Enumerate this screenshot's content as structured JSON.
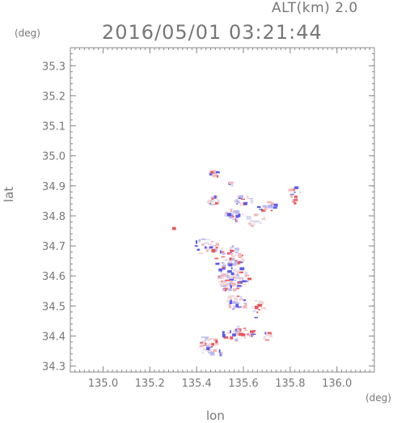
{
  "header": {
    "alt_label": "ALT(km) 2.0",
    "time_label": "2016/05/01 03:21:44"
  },
  "chart_data": {
    "type": "scatter",
    "title": "2016/05/01 03:21:44",
    "subtitle": "ALT(km) 2.0",
    "xlabel": "lon",
    "ylabel": "lat",
    "xunit": "(deg)",
    "yunit": "(deg)",
    "xlim": [
      134.86,
      136.16
    ],
    "ylim": [
      34.28,
      35.36
    ],
    "xticks": [
      135.0,
      135.2,
      135.4,
      135.6,
      135.8,
      136.0
    ],
    "xtick_labels": [
      "135.0",
      "135.2",
      "135.4",
      "135.6",
      "135.8",
      "136.0"
    ],
    "yticks": [
      34.3,
      34.4,
      34.5,
      34.6,
      34.7,
      34.8,
      34.9,
      35.0,
      35.1,
      35.2,
      35.3
    ],
    "ytick_labels": [
      "34.3",
      "34.4",
      "34.5",
      "34.6",
      "34.7",
      "34.8",
      "34.9",
      "35.0",
      "35.1",
      "35.2",
      "35.3"
    ],
    "grid": false,
    "colors": {
      "positive": "#e8575a",
      "negative": "#5b5bea",
      "light_pos": "#f4b7b7",
      "light_neg": "#b8b8f2",
      "axis": "#8a8a8a"
    },
    "clusters": [
      {
        "lon": 135.48,
        "lat": 34.94,
        "rx": 0.02,
        "ry": 0.012,
        "n": 14
      },
      {
        "lon": 135.55,
        "lat": 34.91,
        "rx": 0.008,
        "ry": 0.01,
        "n": 5
      },
      {
        "lon": 135.48,
        "lat": 34.85,
        "rx": 0.03,
        "ry": 0.015,
        "n": 18
      },
      {
        "lon": 135.6,
        "lat": 34.85,
        "rx": 0.04,
        "ry": 0.015,
        "n": 20
      },
      {
        "lon": 135.7,
        "lat": 34.83,
        "rx": 0.04,
        "ry": 0.02,
        "n": 16
      },
      {
        "lon": 135.82,
        "lat": 34.87,
        "rx": 0.025,
        "ry": 0.03,
        "n": 14
      },
      {
        "lon": 135.56,
        "lat": 34.8,
        "rx": 0.04,
        "ry": 0.02,
        "n": 20
      },
      {
        "lon": 135.65,
        "lat": 34.79,
        "rx": 0.04,
        "ry": 0.025,
        "n": 16
      },
      {
        "lon": 135.3,
        "lat": 34.76,
        "rx": 0.005,
        "ry": 0.005,
        "n": 2
      },
      {
        "lon": 135.44,
        "lat": 34.7,
        "rx": 0.05,
        "ry": 0.03,
        "n": 22
      },
      {
        "lon": 135.54,
        "lat": 34.66,
        "rx": 0.06,
        "ry": 0.04,
        "n": 48
      },
      {
        "lon": 135.56,
        "lat": 34.6,
        "rx": 0.07,
        "ry": 0.04,
        "n": 55
      },
      {
        "lon": 135.54,
        "lat": 34.57,
        "rx": 0.05,
        "ry": 0.02,
        "n": 30
      },
      {
        "lon": 135.57,
        "lat": 34.51,
        "rx": 0.05,
        "ry": 0.025,
        "n": 26
      },
      {
        "lon": 135.66,
        "lat": 34.49,
        "rx": 0.03,
        "ry": 0.03,
        "n": 14
      },
      {
        "lon": 135.58,
        "lat": 34.41,
        "rx": 0.07,
        "ry": 0.025,
        "n": 36
      },
      {
        "lon": 135.45,
        "lat": 34.38,
        "rx": 0.05,
        "ry": 0.02,
        "n": 24
      },
      {
        "lon": 135.48,
        "lat": 34.35,
        "rx": 0.06,
        "ry": 0.012,
        "n": 18
      },
      {
        "lon": 135.7,
        "lat": 34.4,
        "rx": 0.02,
        "ry": 0.02,
        "n": 10
      }
    ]
  }
}
